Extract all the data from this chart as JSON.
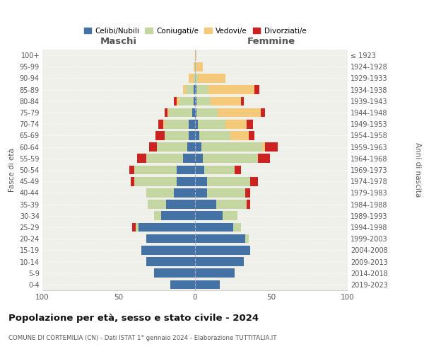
{
  "age_groups": [
    "0-4",
    "5-9",
    "10-14",
    "15-19",
    "20-24",
    "25-29",
    "30-34",
    "35-39",
    "40-44",
    "45-49",
    "50-54",
    "55-59",
    "60-64",
    "65-69",
    "70-74",
    "75-79",
    "80-84",
    "85-89",
    "90-94",
    "95-99",
    "100+"
  ],
  "birth_years": [
    "2019-2023",
    "2014-2018",
    "2009-2013",
    "2004-2008",
    "1999-2003",
    "1994-1998",
    "1989-1993",
    "1984-1988",
    "1979-1983",
    "1974-1978",
    "1969-1973",
    "1964-1968",
    "1959-1963",
    "1954-1958",
    "1949-1953",
    "1944-1948",
    "1939-1943",
    "1934-1938",
    "1929-1933",
    "1924-1928",
    "≤ 1923"
  ],
  "colors": {
    "celibi": "#4472a4",
    "coniugati": "#c5d6a0",
    "vedovi": "#f5c97a",
    "divorziati": "#cc2222"
  },
  "maschi": {
    "celibi": [
      16,
      27,
      32,
      35,
      32,
      37,
      22,
      19,
      14,
      12,
      12,
      8,
      5,
      4,
      4,
      2,
      1,
      1,
      0,
      0,
      0
    ],
    "coniugati": [
      0,
      0,
      0,
      0,
      0,
      2,
      5,
      12,
      18,
      28,
      28,
      24,
      20,
      16,
      16,
      15,
      9,
      5,
      1,
      0,
      0
    ],
    "vedovi": [
      0,
      0,
      0,
      0,
      0,
      0,
      0,
      0,
      0,
      0,
      0,
      0,
      0,
      0,
      1,
      1,
      2,
      2,
      3,
      1,
      0
    ],
    "divorziati": [
      0,
      0,
      0,
      0,
      0,
      2,
      0,
      0,
      0,
      2,
      3,
      6,
      5,
      6,
      3,
      2,
      2,
      0,
      0,
      0,
      0
    ]
  },
  "femmine": {
    "celibi": [
      16,
      26,
      32,
      36,
      33,
      25,
      18,
      14,
      8,
      8,
      6,
      5,
      4,
      3,
      2,
      1,
      1,
      1,
      0,
      0,
      0
    ],
    "coniugati": [
      0,
      0,
      0,
      0,
      2,
      5,
      10,
      20,
      25,
      28,
      20,
      36,
      40,
      20,
      18,
      14,
      9,
      8,
      2,
      1,
      0
    ],
    "vedovi": [
      0,
      0,
      0,
      0,
      0,
      0,
      0,
      0,
      0,
      0,
      0,
      0,
      2,
      12,
      14,
      28,
      20,
      30,
      18,
      4,
      1
    ],
    "divorziati": [
      0,
      0,
      0,
      0,
      0,
      0,
      0,
      2,
      3,
      5,
      4,
      8,
      8,
      4,
      4,
      3,
      2,
      3,
      0,
      0,
      0
    ]
  },
  "title": "Popolazione per età, sesso e stato civile - 2024",
  "subtitle": "COMUNE DI CORTEMILIA (CN) - Dati ISTAT 1° gennaio 2024 - Elaborazione TUTTITALIA.IT",
  "xlabel_left": "Maschi",
  "xlabel_right": "Femmine",
  "ylabel_left": "Fasce di età",
  "ylabel_right": "Anni di nascita",
  "xlim": 100,
  "legend_labels": [
    "Celibi/Nubili",
    "Coniugati/e",
    "Vedovi/e",
    "Divorziati/e"
  ],
  "background_color": "#ffffff",
  "plot_bg": "#f0f0eb"
}
